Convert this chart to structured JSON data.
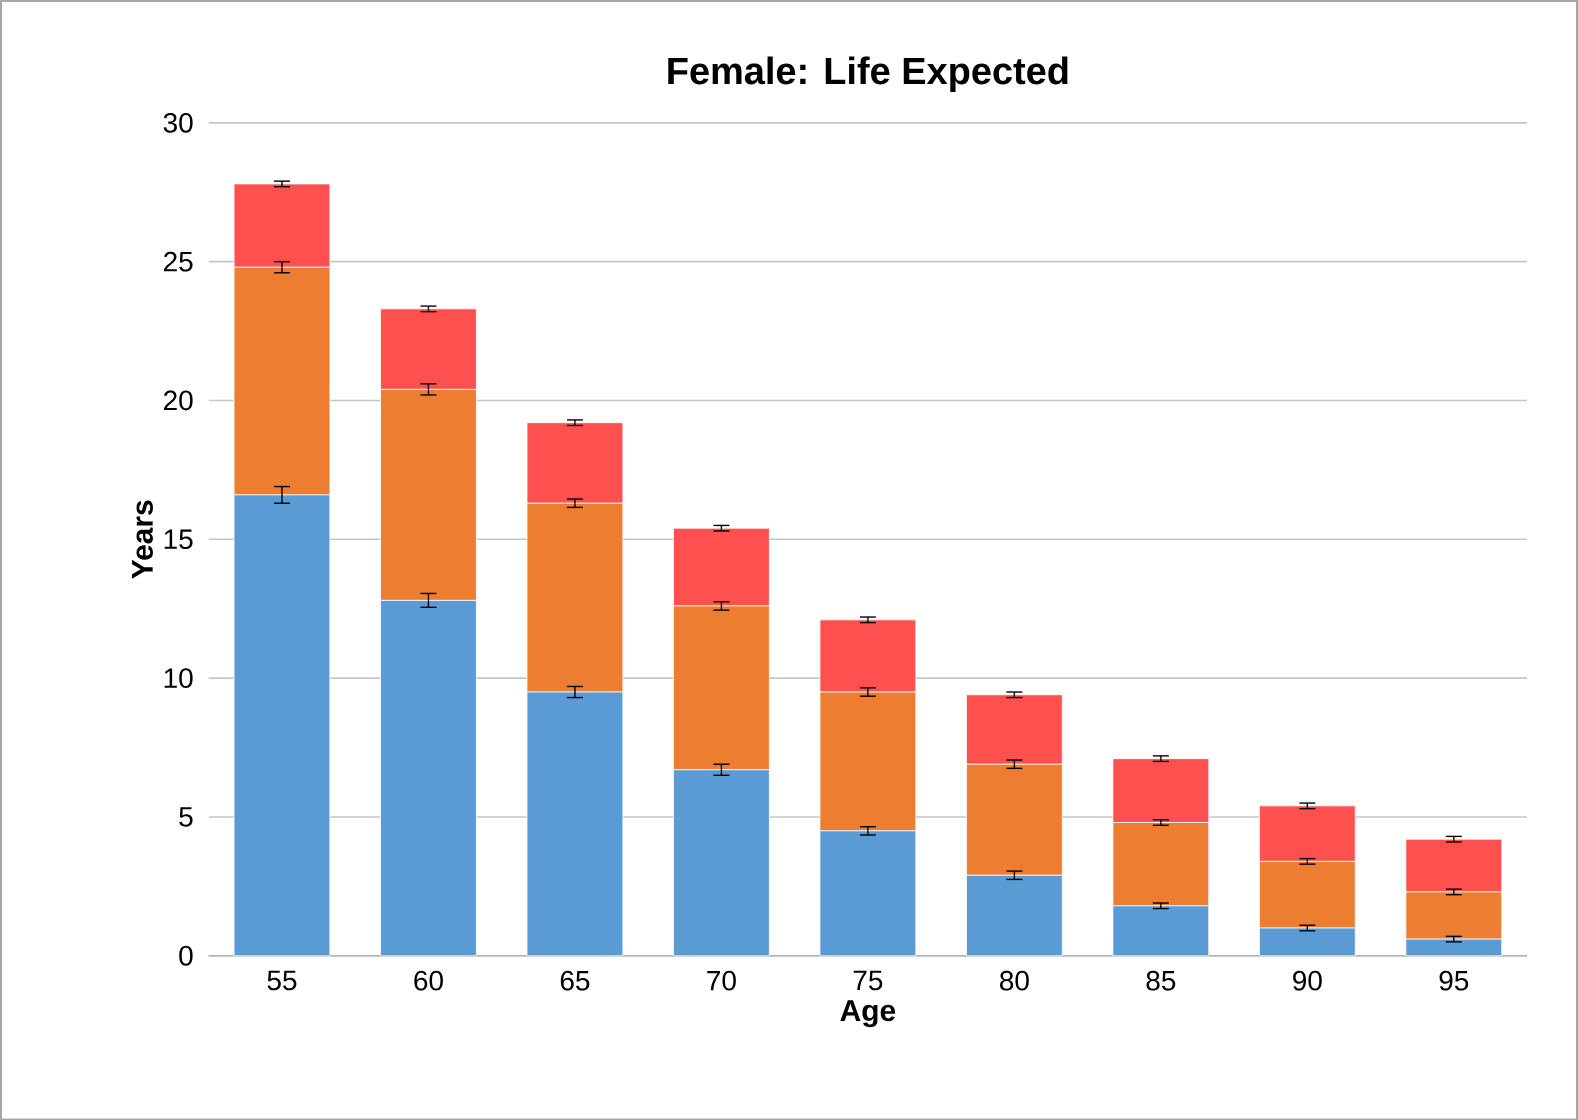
{
  "chart_data": {
    "type": "bar",
    "stacked": true,
    "title": "Female: Life Expected",
    "xlabel": "Age",
    "ylabel": "Years",
    "categories": [
      "55",
      "60",
      "65",
      "70",
      "75",
      "80",
      "85",
      "90",
      "95"
    ],
    "series": [
      {
        "color": "#5b9bd5",
        "values": [
          16.6,
          12.8,
          9.5,
          6.7,
          4.5,
          2.9,
          1.8,
          1.0,
          0.6
        ],
        "errors": [
          0.3,
          0.25,
          0.2,
          0.2,
          0.15,
          0.15,
          0.1,
          0.1,
          0.1
        ]
      },
      {
        "color": "#ed7d31",
        "values": [
          8.2,
          7.6,
          6.8,
          5.9,
          5.0,
          4.0,
          3.0,
          2.4,
          1.7
        ],
        "errors": [
          0.2,
          0.2,
          0.15,
          0.15,
          0.15,
          0.15,
          0.1,
          0.1,
          0.1
        ]
      },
      {
        "color": "#ff5050",
        "values": [
          3.0,
          2.9,
          2.9,
          2.8,
          2.6,
          2.5,
          2.3,
          2.0,
          1.9
        ],
        "errors": [
          0.1,
          0.1,
          0.1,
          0.1,
          0.1,
          0.1,
          0.1,
          0.1,
          0.1
        ]
      }
    ],
    "ylim": [
      0,
      30
    ],
    "yticks": [
      0,
      5,
      10,
      15,
      20,
      25,
      30
    ],
    "grid": "y"
  }
}
